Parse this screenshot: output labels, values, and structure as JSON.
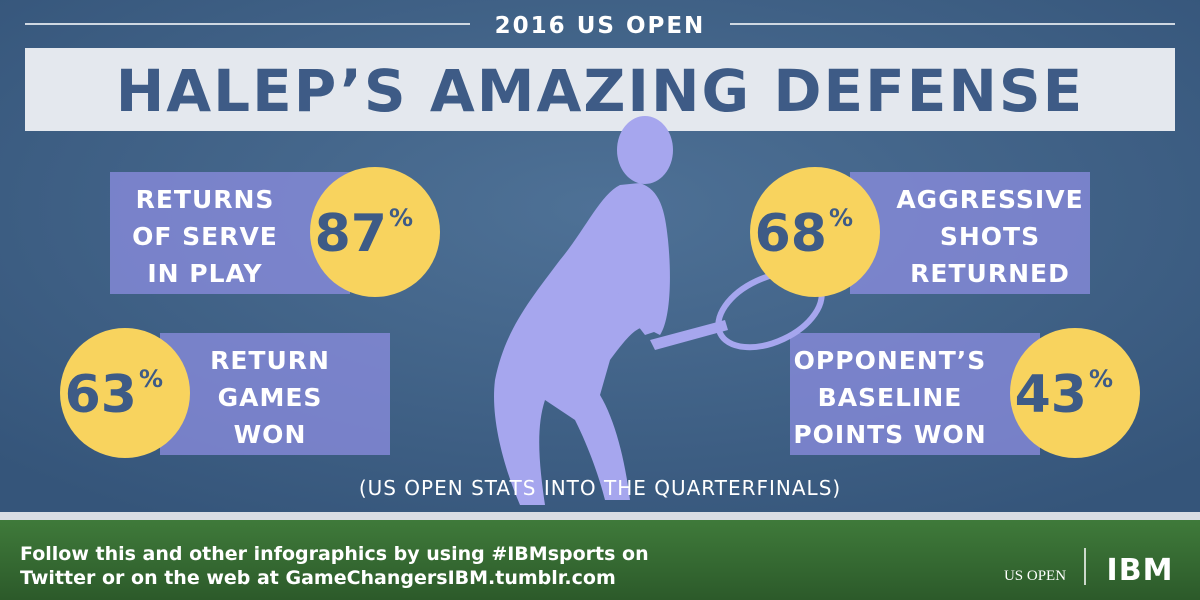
{
  "header": {
    "event": "2016 US OPEN",
    "title": "HALEP’S AMAZING DEFENSE"
  },
  "stats": [
    {
      "lines": [
        "RETURNS",
        "OF SERVE",
        "IN PLAY"
      ],
      "value": "87",
      "unit": "%"
    },
    {
      "lines": [
        "AGGRESSIVE",
        "SHOTS",
        "RETURNED"
      ],
      "value": "68",
      "unit": "%"
    },
    {
      "lines": [
        "RETURN",
        "GAMES",
        "WON"
      ],
      "value": "63",
      "unit": "%"
    },
    {
      "lines": [
        "OPPONENT’S",
        "BASELINE",
        "POINTS WON"
      ],
      "value": "43",
      "unit": "%"
    }
  ],
  "note": "(US OPEN STATS INTO THE QUARTERFINALS)",
  "footer": {
    "lines": [
      "Follow this and other infographics by using #IBMsports on",
      "Twitter or on the web at GameChangersIBM.tumblr.com"
    ],
    "logos": [
      "US OPEN",
      "IBM"
    ]
  }
}
